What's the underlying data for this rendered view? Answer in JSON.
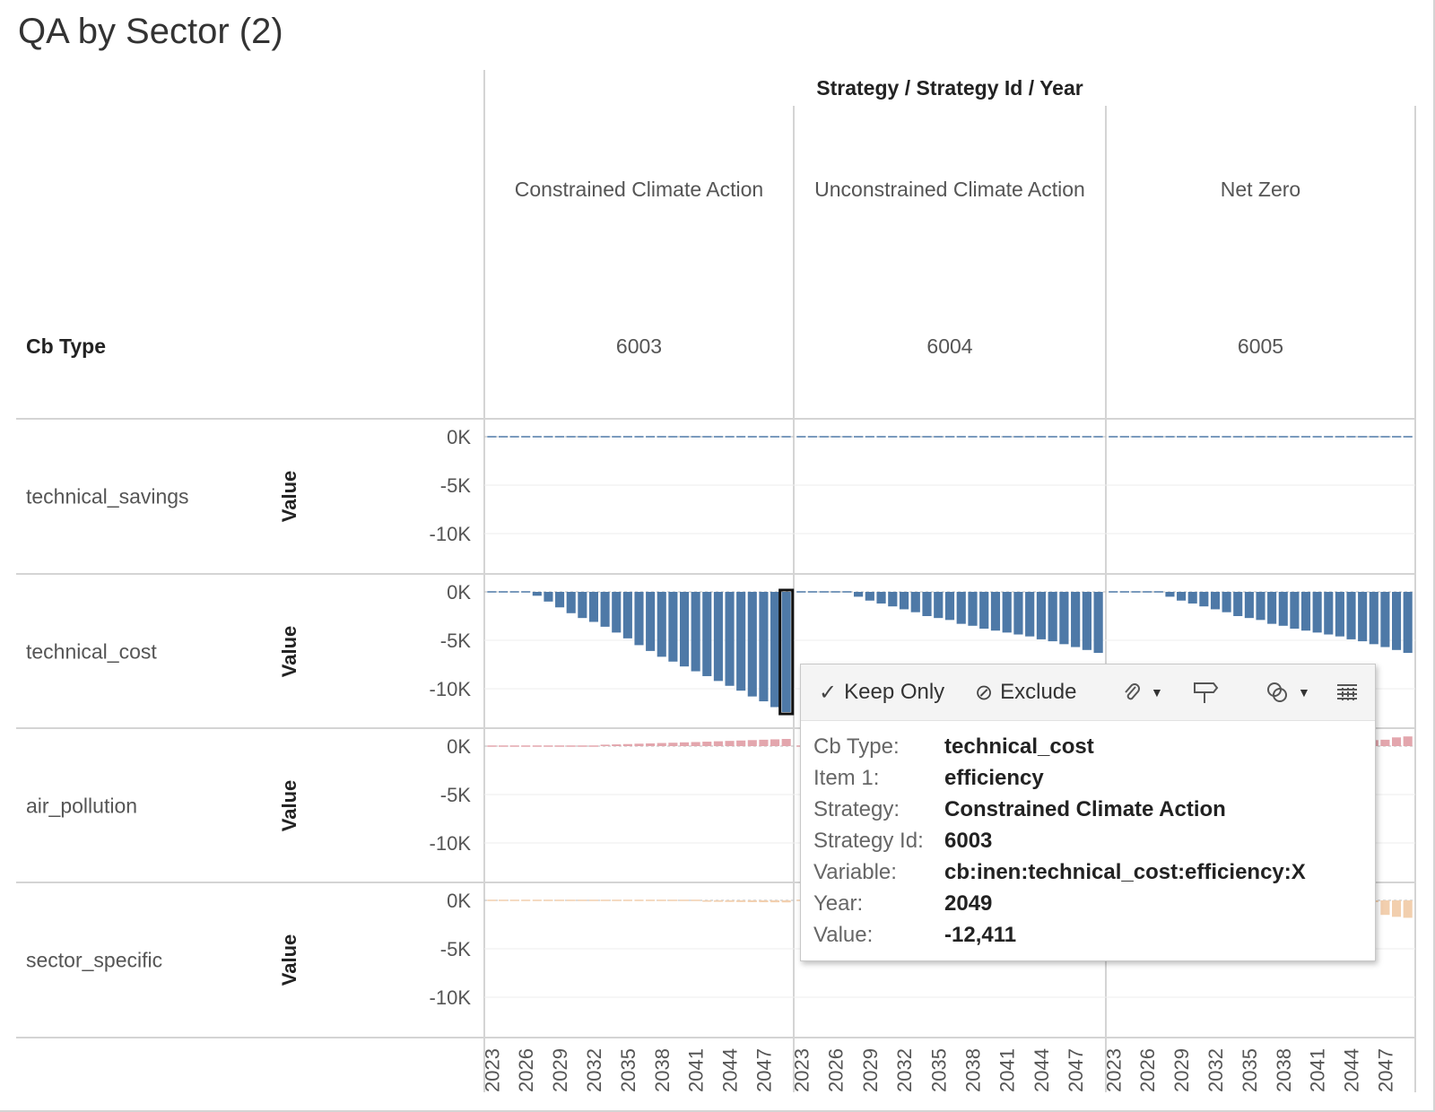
{
  "title": "QA by Sector (2)",
  "header": {
    "column_path": [
      "Strategy",
      "Strategy Id",
      "Year"
    ],
    "row_field": "Cb Type",
    "separator": "/"
  },
  "chart_data": {
    "type": "bar",
    "title": "QA by Sector (2)",
    "strategies": [
      {
        "name": "Constrained Climate Action",
        "id": "6003"
      },
      {
        "name": "Unconstrained Climate Action",
        "id": "6004"
      },
      {
        "name": "Net Zero",
        "id": "6005"
      }
    ],
    "rows": [
      {
        "cb_type": "technical_savings",
        "axis_label": "Value",
        "color": "#4e79a7"
      },
      {
        "cb_type": "technical_cost",
        "axis_label": "Value",
        "color": "#4e79a7"
      },
      {
        "cb_type": "air_pollution",
        "axis_label": "Value",
        "color": "#e3a6ad"
      },
      {
        "cb_type": "sector_specific",
        "axis_label": "Value",
        "color": "#f2cfae"
      }
    ],
    "ylim": [
      -12800,
      500
    ],
    "y_ticks": [
      0,
      -5000,
      -10000
    ],
    "y_tick_labels": [
      "0K",
      "-5K",
      "-10K"
    ],
    "x_years": [
      2023,
      2024,
      2025,
      2026,
      2027,
      2028,
      2029,
      2030,
      2031,
      2032,
      2033,
      2034,
      2035,
      2036,
      2037,
      2038,
      2039,
      2040,
      2041,
      2042,
      2043,
      2044,
      2045,
      2046,
      2047,
      2048,
      2049
    ],
    "x_tick_labels": [
      "2023",
      "2026",
      "2029",
      "2032",
      "2035",
      "2038",
      "2041",
      "2044",
      "2047"
    ],
    "values": {
      "technical_savings": {
        "6003": [
          0,
          0,
          0,
          0,
          0,
          0,
          0,
          0,
          0,
          0,
          0,
          0,
          0,
          0,
          0,
          0,
          0,
          0,
          0,
          0,
          0,
          0,
          0,
          0,
          0,
          0,
          0
        ],
        "6004": [
          0,
          0,
          0,
          0,
          0,
          0,
          0,
          0,
          0,
          0,
          0,
          0,
          0,
          0,
          0,
          0,
          0,
          0,
          0,
          0,
          0,
          0,
          0,
          0,
          0,
          0,
          0
        ],
        "6005": [
          0,
          0,
          0,
          0,
          0,
          0,
          0,
          0,
          0,
          0,
          0,
          0,
          0,
          0,
          0,
          0,
          0,
          0,
          0,
          0,
          0,
          0,
          0,
          0,
          0,
          0,
          0
        ]
      },
      "technical_cost": {
        "6003": [
          -50,
          -50,
          -60,
          -80,
          -400,
          -1000,
          -1600,
          -2200,
          -2700,
          -3100,
          -3600,
          -4200,
          -4800,
          -5500,
          -6100,
          -6700,
          -7200,
          -7700,
          -8200,
          -8700,
          -9200,
          -9700,
          -10200,
          -10800,
          -11300,
          -11900,
          -12411
        ],
        "6004": [
          -30,
          -30,
          -40,
          -50,
          -120,
          -500,
          -900,
          -1200,
          -1500,
          -1800,
          -2100,
          -2500,
          -2700,
          -2900,
          -3300,
          -3500,
          -3800,
          -4000,
          -4200,
          -4400,
          -4600,
          -4900,
          -5100,
          -5400,
          -5700,
          -6000,
          -6300
        ],
        "6005": [
          -30,
          -30,
          -40,
          -50,
          -120,
          -500,
          -900,
          -1200,
          -1500,
          -1800,
          -2100,
          -2500,
          -2700,
          -2900,
          -3300,
          -3500,
          -3800,
          -4000,
          -4200,
          -4400,
          -4600,
          -4900,
          -5100,
          -5400,
          -5700,
          -6000,
          -6300
        ]
      },
      "air_pollution": {
        "6003": [
          20,
          20,
          20,
          20,
          30,
          50,
          60,
          80,
          100,
          120,
          150,
          180,
          210,
          250,
          280,
          320,
          350,
          390,
          420,
          460,
          500,
          540,
          580,
          620,
          660,
          700,
          740
        ],
        "6004": [
          20,
          20,
          20,
          20,
          30,
          50,
          60,
          80,
          100,
          120,
          150,
          180,
          210,
          250,
          280,
          320,
          350,
          390,
          420,
          460,
          500,
          540,
          580,
          620,
          660,
          700,
          740
        ],
        "6005": [
          20,
          20,
          20,
          20,
          30,
          50,
          60,
          80,
          100,
          120,
          150,
          180,
          210,
          250,
          280,
          320,
          350,
          390,
          420,
          460,
          500,
          540,
          580,
          620,
          660,
          900,
          1000
        ]
      },
      "sector_specific": {
        "6003": [
          -5,
          -5,
          -5,
          -10,
          -10,
          -15,
          -20,
          -25,
          -30,
          -40,
          -50,
          -60,
          -70,
          -80,
          -90,
          -100,
          -110,
          -120,
          -130,
          -140,
          -150,
          -160,
          -170,
          -180,
          -190,
          -200,
          -210
        ],
        "6004": [
          -5,
          -5,
          -5,
          -10,
          -10,
          -15,
          -20,
          -25,
          -30,
          -40,
          -50,
          -60,
          -70,
          -80,
          -90,
          -100,
          -110,
          -120,
          -130,
          -140,
          -150,
          -160,
          -170,
          -180,
          -190,
          -200,
          -210
        ],
        "6005": [
          -5,
          -5,
          -5,
          -10,
          -10,
          -15,
          -20,
          -25,
          -30,
          -40,
          -50,
          -60,
          -70,
          -80,
          -90,
          -100,
          -110,
          -120,
          -130,
          -140,
          -150,
          -160,
          -170,
          -180,
          -1500,
          -1700,
          -1800
        ]
      }
    },
    "highlight": {
      "cb_type": "technical_cost",
      "strategy_id": "6003",
      "year": 2049
    }
  },
  "tooltip": {
    "toolbar": {
      "keep_only": "Keep Only",
      "exclude": "Exclude",
      "keep_icon": "check-icon",
      "exclude_icon": "ban-icon",
      "group_icon": "paperclip-icon",
      "highlight_icon": "highlighter-icon",
      "sets_icon": "sets-icon",
      "view_data_icon": "view-data-icon"
    },
    "rows": [
      {
        "key": "Cb Type:",
        "value": "technical_cost"
      },
      {
        "key": "Item 1:",
        "value": "efficiency"
      },
      {
        "key": "Strategy:",
        "value": "Constrained Climate Action"
      },
      {
        "key": "Strategy Id:",
        "value": "6003"
      },
      {
        "key": "Variable:",
        "value": "cb:inen:technical_cost:efficiency:X"
      },
      {
        "key": "Year:",
        "value": "2049"
      },
      {
        "key": "Value:",
        "value": "-12,411"
      }
    ]
  }
}
